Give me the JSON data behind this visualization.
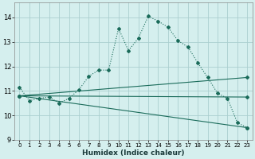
{
  "xlabel": "Humidex (Indice chaleur)",
  "bg_color": "#d5efee",
  "grid_color": "#aacfcf",
  "line_color": "#1a6b5a",
  "xlim": [
    -0.5,
    23.5
  ],
  "ylim": [
    9,
    14.6
  ],
  "yticks": [
    9,
    10,
    11,
    12,
    13,
    14
  ],
  "xticks": [
    0,
    1,
    2,
    3,
    4,
    5,
    6,
    7,
    8,
    9,
    10,
    11,
    12,
    13,
    14,
    15,
    16,
    17,
    18,
    19,
    20,
    21,
    22,
    23
  ],
  "main_line": {
    "x": [
      0,
      1,
      2,
      3,
      4,
      5,
      6,
      7,
      8,
      9,
      10,
      11,
      12,
      13,
      14,
      15,
      16,
      17,
      18,
      19,
      20,
      21,
      22,
      23
    ],
    "y": [
      11.15,
      10.6,
      10.7,
      10.75,
      10.5,
      10.7,
      11.05,
      11.6,
      11.85,
      11.85,
      13.55,
      12.65,
      13.15,
      14.05,
      13.85,
      13.6,
      13.05,
      12.8,
      12.15,
      11.55,
      10.9,
      10.7,
      9.7,
      9.5
    ]
  },
  "trend_lines": [
    {
      "x": [
        0,
        23
      ],
      "y": [
        10.8,
        11.55
      ]
    },
    {
      "x": [
        0,
        23
      ],
      "y": [
        10.8,
        10.75
      ]
    },
    {
      "x": [
        0,
        23
      ],
      "y": [
        10.8,
        9.5
      ]
    }
  ]
}
